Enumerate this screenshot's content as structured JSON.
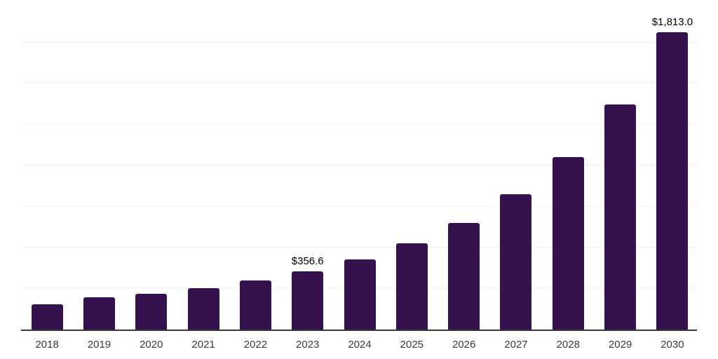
{
  "chart_data": {
    "type": "bar",
    "title": "",
    "xlabel": "",
    "ylabel": "",
    "categories": [
      "2018",
      "2019",
      "2020",
      "2021",
      "2022",
      "2023",
      "2024",
      "2025",
      "2026",
      "2027",
      "2028",
      "2029",
      "2030"
    ],
    "values": [
      156,
      195,
      220,
      254,
      298,
      356.6,
      427,
      527,
      648,
      824,
      1051,
      1374,
      1813
    ],
    "labeled_points": [
      {
        "category": "2023",
        "label": "$356.6"
      },
      {
        "category": "2030",
        "label": "$1,813.0"
      }
    ],
    "ylim": [
      0,
      2000
    ],
    "gridline_interval": 250,
    "grid": "horizontal",
    "legend": "none",
    "y_axis_tick_labels": "none"
  },
  "colors": {
    "bar": "#35114d",
    "gridline": "#f1eff1",
    "axis_line": "#3a3a3a",
    "data_label": "#000000",
    "tick_label": "#3a3a3a",
    "background": "#ffffff"
  }
}
